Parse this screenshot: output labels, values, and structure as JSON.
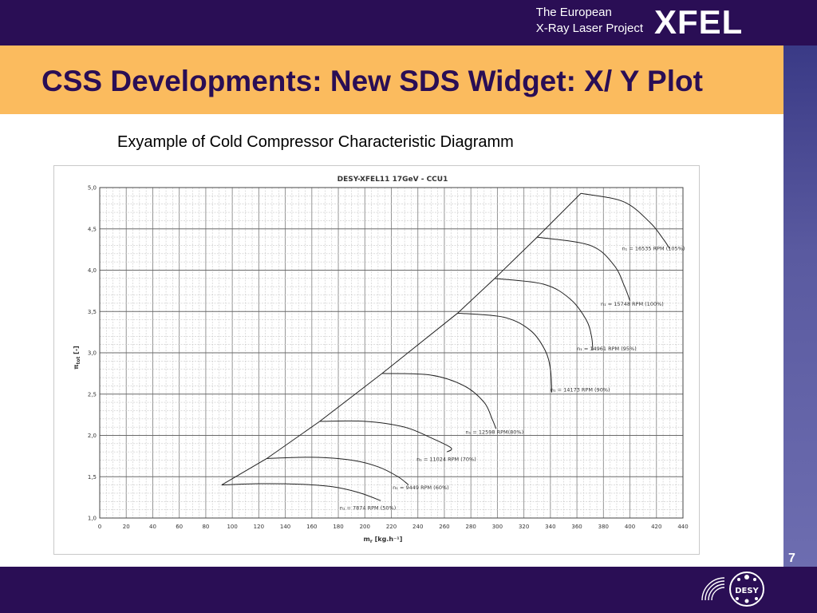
{
  "header": {
    "project_line1": "The European",
    "project_line2": "X-Ray Laser Project",
    "logo": "XFEL"
  },
  "slide": {
    "title": "CSS Developments: New SDS Widget: X/ Y Plot",
    "subtitle": "Exyample of Cold Compressor Characteristic Diagramm",
    "page_number": "7"
  },
  "footer": {
    "logo_text": "DESY",
    "logo_icon": "desy-helmholtz-logo-icon"
  },
  "colors": {
    "header_bg": "#2a0e55",
    "title_band": "#fbbb5e",
    "title_text": "#2a0e55",
    "side_strip": "#5a5aa0"
  },
  "chart_data": {
    "type": "line",
    "title": "DESY-XFEL11 17GeV - CCU1",
    "xlabel": "m",
    "xlabel_sub": "r",
    "xlabel_unit": "[kg.h⁻¹]",
    "ylabel": "π",
    "ylabel_sub": "tot",
    "ylabel_unit": "[-]",
    "xlim": [
      0,
      440
    ],
    "ylim": [
      1.0,
      5.0
    ],
    "xticks": [
      0,
      20,
      40,
      60,
      80,
      100,
      120,
      140,
      160,
      180,
      200,
      220,
      240,
      260,
      280,
      300,
      320,
      340,
      360,
      380,
      400,
      420,
      440
    ],
    "yticks": [
      1.0,
      1.5,
      2.0,
      2.5,
      3.0,
      3.5,
      4.0,
      4.5,
      5.0
    ],
    "ytick_labels": [
      "1,0",
      "1,5",
      "2,0",
      "2,5",
      "3,0",
      "3,5",
      "4,0",
      "4,5",
      "5,0"
    ],
    "grid": true,
    "surge_line": {
      "x": [
        92,
        126,
        166,
        213,
        270,
        298,
        330,
        363
      ],
      "y": [
        1.4,
        1.72,
        2.17,
        2.75,
        3.48,
        3.9,
        4.4,
        4.93
      ]
    },
    "series": [
      {
        "name": "n₁ = 7874 RPM (50%)",
        "x": [
          92,
          120,
          150,
          175,
          195,
          212
        ],
        "y": [
          1.4,
          1.415,
          1.41,
          1.38,
          1.31,
          1.21
        ]
      },
      {
        "name": "n₁ = 9449 RPM (60%)",
        "x": [
          126,
          160,
          190,
          210,
          225,
          233
        ],
        "y": [
          1.72,
          1.735,
          1.7,
          1.62,
          1.5,
          1.4
        ]
      },
      {
        "name": "n₁ = 11024 RPM (70%)",
        "x": [
          166,
          200,
          230,
          250,
          265,
          262
        ],
        "y": [
          2.17,
          2.17,
          2.1,
          1.97,
          1.85,
          1.8
        ]
      },
      {
        "name": "n₁ = 12598 RPM(80%)",
        "x": [
          213,
          250,
          275,
          290,
          296,
          299
        ],
        "y": [
          2.75,
          2.73,
          2.6,
          2.4,
          2.2,
          2.08
        ]
      },
      {
        "name": "n₁ = 14173 RPM (90%)",
        "x": [
          270,
          305,
          325,
          336,
          340,
          341
        ],
        "y": [
          3.48,
          3.43,
          3.27,
          3.03,
          2.8,
          2.52
        ]
      },
      {
        "name": "n₁ = 14961 RPM (95%)",
        "x": [
          298,
          335,
          355,
          367,
          371,
          372
        ],
        "y": [
          3.9,
          3.83,
          3.65,
          3.4,
          3.2,
          3.03
        ]
      },
      {
        "name": "n₁ = 15748 RPM (100%)",
        "x": [
          330,
          370,
          388,
          396,
          400
        ],
        "y": [
          4.4,
          4.3,
          4.06,
          3.8,
          3.63
        ]
      },
      {
        "name": "n₁ = 16535 RPM (105%)",
        "x": [
          363,
          395,
          415,
          425,
          430
        ],
        "y": [
          4.93,
          4.83,
          4.58,
          4.38,
          4.26
        ]
      }
    ],
    "series_label_positions": [
      {
        "x": 181,
        "y": 1.1
      },
      {
        "x": 221,
        "y": 1.35
      },
      {
        "x": 239,
        "y": 1.69
      },
      {
        "x": 276,
        "y": 2.02
      },
      {
        "x": 340,
        "y": 2.53
      },
      {
        "x": 360,
        "y": 3.03
      },
      {
        "x": 378,
        "y": 3.57
      },
      {
        "x": 394,
        "y": 4.24
      }
    ]
  }
}
